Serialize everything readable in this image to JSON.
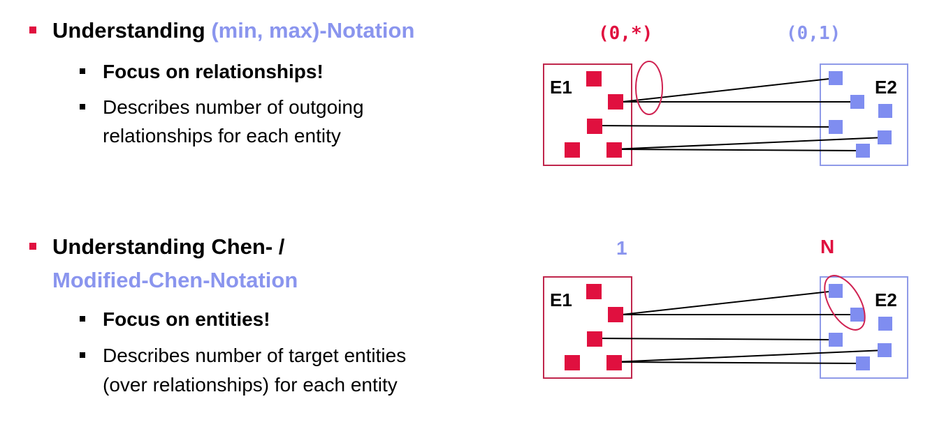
{
  "section1": {
    "heading_plain": "Understanding ",
    "heading_accent": "(min, max)-Notation",
    "items": [
      {
        "text": "Focus on relationships!"
      },
      {
        "line1": "Describes number of outgoing",
        "line2": "relationships for each entity"
      }
    ]
  },
  "section2": {
    "heading_line1": "Understanding Chen- /",
    "heading_line2": "Modified-Chen-Notation",
    "items": [
      {
        "text": "Focus on entities!"
      },
      {
        "line1": "Describes number of target entities",
        "line2": "(over relationships) for each entity"
      }
    ]
  },
  "diagram1": {
    "label_left": "(0,*)",
    "label_right": "(0,1)",
    "entity_left": "E1",
    "entity_right": "E2"
  },
  "diagram2": {
    "label_left": "1",
    "label_right": "N",
    "entity_left": "E1",
    "entity_right": "E2"
  },
  "colors": {
    "red": "#e0103f",
    "red_border": "#c0264c",
    "blue": "#8a95ee",
    "blue_border": "#8f9ae8",
    "blue_square": "#7f8df0"
  }
}
